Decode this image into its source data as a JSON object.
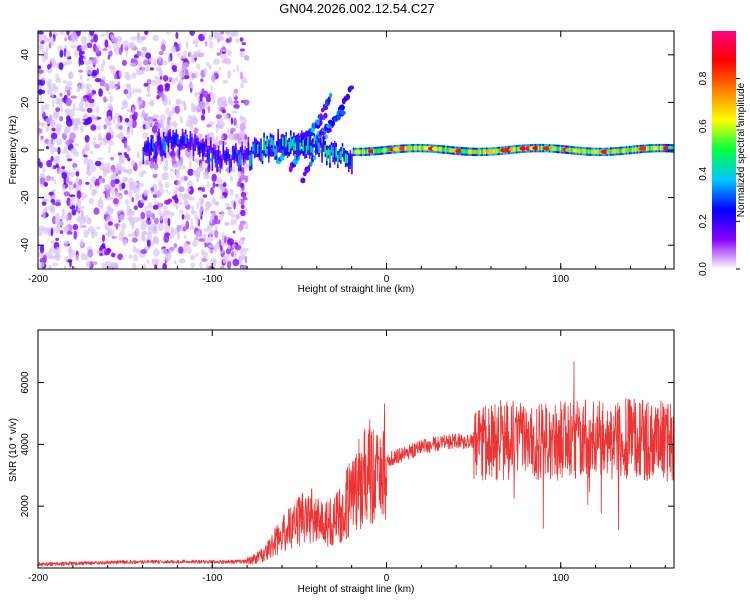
{
  "title": "GN04.2026.002.12.54.C27",
  "chart_data": [
    {
      "type": "heatmap",
      "panel": "spectrogram",
      "xlabel": "Height of straight line (km)",
      "ylabel": "Frequency (Hz)",
      "xlim": [
        -200,
        165
      ],
      "ylim": [
        -50,
        50
      ],
      "x_ticks": [
        -200,
        -100,
        0,
        100
      ],
      "y_ticks": [
        -40,
        -20,
        0,
        20,
        40
      ],
      "colorbar": {
        "label": "Normalized spectral amplitude",
        "range": [
          0,
          1
        ],
        "ticks": [
          0.0,
          0.2,
          0.4,
          0.6,
          0.8
        ],
        "tick_labels": [
          "0.0",
          "0.2",
          "0.4",
          "0.6",
          "0.8"
        ],
        "colormap": [
          "#ffffff",
          "#8800ff",
          "#0000ff",
          "#00c8ff",
          "#00ff40",
          "#ffff00",
          "#ff8000",
          "#ff0000",
          "#ff0080"
        ]
      },
      "features": [
        {
          "name": "broadband noise",
          "x_range": [
            -200,
            -80
          ],
          "freq_range": [
            -50,
            50
          ],
          "amplitude": "low"
        },
        {
          "name": "carrier band",
          "x_range": [
            -140,
            165
          ],
          "center_freq": 0,
          "amplitude": "high"
        },
        {
          "name": "doppler streaks",
          "x_range": [
            -70,
            -20
          ],
          "freq_range": [
            -12,
            30
          ],
          "amplitude": "medium"
        }
      ]
    },
    {
      "type": "line",
      "panel": "snr",
      "xlabel": "Height of straight line (km)",
      "ylabel": "SNR (10 * v/v)",
      "xlim": [
        -200,
        165
      ],
      "ylim": [
        0,
        7700
      ],
      "x_ticks": [
        -200,
        -100,
        0,
        100
      ],
      "y_ticks": [
        2000,
        4000,
        6000
      ],
      "color": "#ee3333",
      "series": [
        {
          "name": "SNR",
          "x": [
            -200,
            -180,
            -160,
            -140,
            -120,
            -100,
            -90,
            -80,
            -75,
            -70,
            -65,
            -60,
            -55,
            -50,
            -45,
            -40,
            -35,
            -30,
            -25,
            -20,
            -15,
            -10,
            -5,
            0,
            10,
            20,
            30,
            40,
            50,
            60,
            70,
            80,
            90,
            100,
            110,
            120,
            130,
            140,
            150,
            160,
            165
          ],
          "y": [
            120,
            150,
            180,
            200,
            210,
            200,
            200,
            220,
            300,
            450,
            800,
            1100,
            1300,
            1500,
            1700,
            1600,
            1400,
            1500,
            1900,
            2300,
            2800,
            3100,
            3300,
            3500,
            3700,
            3900,
            4050,
            4100,
            4050,
            4100,
            4150,
            4100,
            4150,
            4100,
            4200,
            4100,
            4150,
            4200,
            4100,
            4100,
            4100
          ]
        }
      ]
    }
  ]
}
